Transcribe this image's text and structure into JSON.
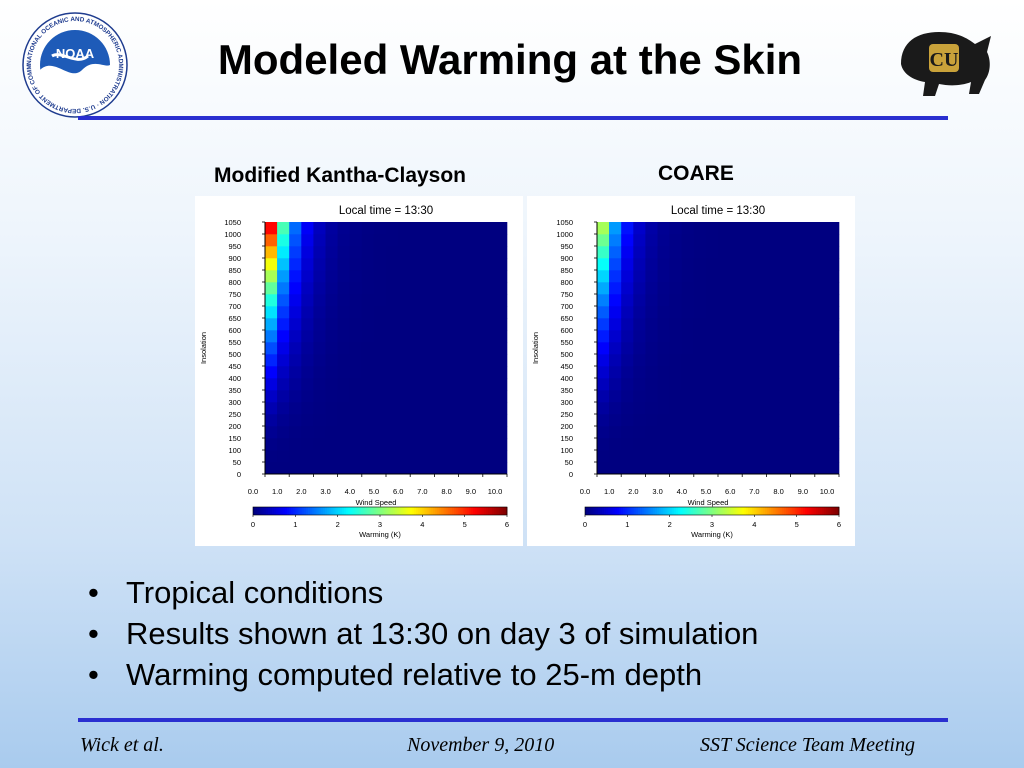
{
  "slide": {
    "title": "Modeled Warming at the Skin",
    "bullets": [
      "Tropical conditions",
      "Results shown at 13:30 on day 3 of simulation",
      "Warming computed relative to 25-m depth"
    ],
    "footer": {
      "author": "Wick et al.",
      "date": "November 9, 2010",
      "meeting": "SST Science Team Meeting"
    },
    "logos": {
      "noaa_text": "NOAA",
      "noaa_ring_text": "NATIONAL OCEANIC AND ATMOSPHERIC ADMINISTRATION · U.S. DEPARTMENT OF COMMERCE ·",
      "cu_text": "CU"
    },
    "colors": {
      "rule": "#2a2fd0",
      "heatmap_background": "#00007f"
    }
  },
  "chart_data": [
    {
      "type": "heatmap",
      "panel_label": "Modified Kantha-Clayson",
      "title": "Local time = 13:30",
      "xlabel": "Wind Speed",
      "ylabel": "Insolation",
      "xlim": [
        0,
        10
      ],
      "ylim": [
        0,
        1050
      ],
      "x_ticks": [
        "0.0",
        "1.0",
        "2.0",
        "3.0",
        "4.0",
        "5.0",
        "6.0",
        "7.0",
        "8.0",
        "9.0",
        "10.0"
      ],
      "y_ticks": [
        "1050",
        "1000",
        "950",
        "900",
        "850",
        "800",
        "750",
        "700",
        "650",
        "600",
        "550",
        "500",
        "450",
        "400",
        "350",
        "300",
        "250",
        "200",
        "150",
        "100",
        "50",
        "0"
      ],
      "x_bin_width": 0.5,
      "y_bin_height": 50,
      "colorbar": {
        "label": "Warming (K)",
        "min": 0,
        "max": 6,
        "ticks": [
          "0",
          "1",
          "2",
          "3",
          "4",
          "5",
          "6"
        ]
      },
      "peak_warming": 5.5,
      "warming_model": "insolation_wind_decay"
    },
    {
      "type": "heatmap",
      "panel_label": "COARE",
      "title": "Local time = 13:30",
      "xlabel": "Wind Speed",
      "ylabel": "Insolation",
      "xlim": [
        0,
        10
      ],
      "ylim": [
        0,
        1050
      ],
      "x_ticks": [
        "0.0",
        "1.0",
        "2.0",
        "3.0",
        "4.0",
        "5.0",
        "6.0",
        "7.0",
        "8.0",
        "9.0",
        "10.0"
      ],
      "y_ticks": [
        "1050",
        "1000",
        "950",
        "900",
        "850",
        "800",
        "750",
        "700",
        "650",
        "600",
        "550",
        "500",
        "450",
        "400",
        "350",
        "300",
        "250",
        "200",
        "150",
        "100",
        "50",
        "0"
      ],
      "x_bin_width": 0.5,
      "y_bin_height": 50,
      "colorbar": {
        "label": "Warming (K)",
        "min": 0,
        "max": 6,
        "ticks": [
          "0",
          "1",
          "2",
          "3",
          "4",
          "5",
          "6"
        ]
      },
      "peak_warming": 3.4,
      "warming_model": "insolation_wind_decay"
    }
  ]
}
